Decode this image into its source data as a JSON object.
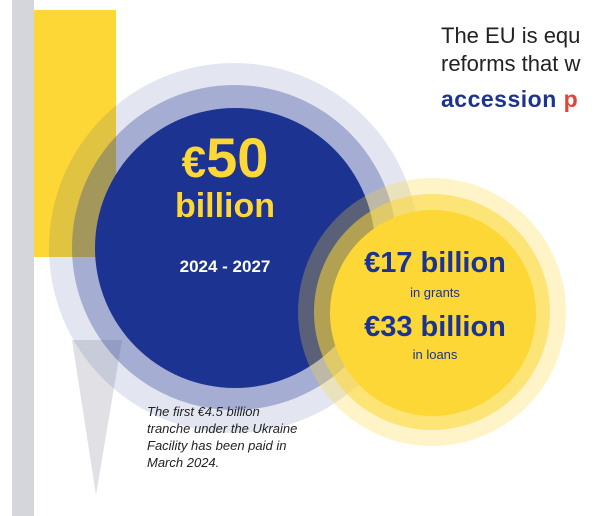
{
  "colors": {
    "navy": "#1c3392",
    "yellow": "#fcd735",
    "gray_bar": "#d5d6dc",
    "red_accent": "#e0443a"
  },
  "headline": {
    "line1": "The EU is equ",
    "line2": "reforms that w",
    "line3": "accession ",
    "line3_cut": "p"
  },
  "main_figure": {
    "currency": "€",
    "amount": "50",
    "unit": "billion",
    "period": "2024 - 2027"
  },
  "breakdown": {
    "grants_amount": "€17 billion",
    "grants_label": "in grants",
    "loans_amount": "€33 billion",
    "loans_label": "in loans"
  },
  "note": {
    "line1": "The first €4.5 billion",
    "line2": "tranche under the Ukraine",
    "line3": "Facility has been paid in",
    "line4": "March 2024."
  }
}
